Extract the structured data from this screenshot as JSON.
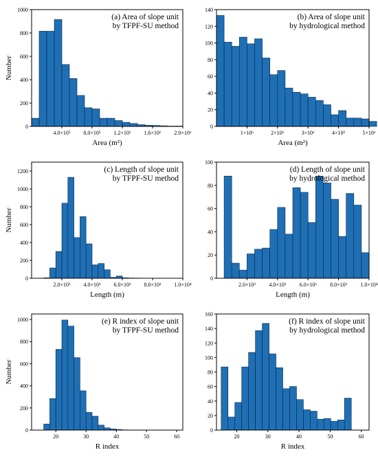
{
  "chart_data": [
    {
      "type": "bar",
      "title": [
        "(a) Area of slope unit",
        "by TFPF-SU method"
      ],
      "xlabel": "Area (m²)",
      "ylabel": "Number",
      "xlim": [
        0,
        2000000
      ],
      "ylim": [
        0,
        1000
      ],
      "bin_start": 0,
      "bin_width": 100000,
      "values": [
        70,
        815,
        815,
        915,
        530,
        410,
        265,
        160,
        150,
        70,
        70,
        50,
        35,
        25,
        15,
        10,
        8,
        5,
        3,
        3
      ],
      "xticks": [
        400000,
        800000,
        1200000,
        1600000,
        2000000
      ],
      "xtick_labels": [
        "4.0×10⁵",
        "8.0×10⁵",
        "1.2×10⁶",
        "1.6×10⁶",
        "2.0×10⁶"
      ],
      "yticks": [
        0,
        200,
        400,
        600,
        800,
        1000
      ],
      "ytick_labels": [
        "0",
        "200",
        "400",
        "600",
        "800",
        "1000"
      ]
    },
    {
      "type": "bar",
      "title": [
        "(b) Area of slope unit",
        "by hydrological method"
      ],
      "xlabel": "Area (m²)",
      "ylabel": "",
      "xlim": [
        0,
        5000000
      ],
      "ylim": [
        0,
        140
      ],
      "bin_start": 0,
      "bin_width": 250000,
      "values": [
        133,
        101,
        96,
        107,
        99,
        105,
        82,
        62,
        67,
        46,
        41,
        39,
        35,
        31,
        26,
        14,
        19,
        10,
        10,
        9,
        6
      ],
      "xticks": [
        1000000,
        2000000,
        3000000,
        4000000,
        5000000
      ],
      "xtick_labels": [
        "1×10⁶",
        "2×10⁶",
        "3×10⁶",
        "4×10⁶",
        "5×10⁶"
      ],
      "yticks": [
        0,
        20,
        40,
        60,
        80,
        100,
        120,
        140
      ],
      "ytick_labels": [
        "0",
        "20",
        "40",
        "60",
        "80",
        "100",
        "120",
        "140"
      ]
    },
    {
      "type": "bar",
      "title": [
        "(c) Length of slope unit",
        "by TFPF-SU method"
      ],
      "xlabel": "Length (m)",
      "ylabel": "Number",
      "xlim": [
        0,
        10000
      ],
      "ylim": [
        0,
        1300
      ],
      "bin_start": 800,
      "bin_width": 400,
      "values": [
        5,
        115,
        300,
        840,
        1130,
        455,
        690,
        385,
        150,
        165,
        95,
        10,
        25,
        5,
        3,
        2
      ],
      "xticks": [
        2000,
        4000,
        6000,
        8000,
        10000
      ],
      "xtick_labels": [
        "2.0×10³",
        "4.0×10³",
        "6.0×10³",
        "8.0×10³",
        "1.0×10⁴"
      ],
      "yticks": [
        0,
        200,
        400,
        600,
        800,
        1000,
        1200
      ],
      "ytick_labels": [
        "0",
        "200",
        "400",
        "600",
        "800",
        "1000",
        "1200"
      ]
    },
    {
      "type": "bar",
      "title": [
        "(d) Length of slope unit",
        "by hydrological method"
      ],
      "xlabel": "Length (m)",
      "ylabel": "",
      "xlim": [
        0,
        10000
      ],
      "ylim": [
        0,
        100
      ],
      "bin_start": 500,
      "bin_width": 500,
      "values": [
        88,
        13,
        7,
        21,
        25,
        26,
        42,
        61,
        38,
        78,
        74,
        48,
        88,
        82,
        68,
        36,
        73,
        63,
        22
      ],
      "xticks": [
        2000,
        4000,
        6000,
        8000,
        10000
      ],
      "xtick_labels": [
        "2.0×10³",
        "4.0×10³",
        "6.0×10³",
        "8.0×10³",
        "1.0×10⁴"
      ],
      "yticks": [
        0,
        20,
        40,
        60,
        80,
        100
      ],
      "ytick_labels": [
        "0",
        "20",
        "40",
        "60",
        "80",
        "100"
      ]
    },
    {
      "type": "bar",
      "title": [
        "(e) R index of slope unit",
        "by TFPF-SU method"
      ],
      "xlabel": "R index",
      "ylabel": "Number",
      "xlim": [
        12,
        62
      ],
      "ylim": [
        0,
        1050
      ],
      "bin_start": 16,
      "bin_width": 2,
      "values": [
        55,
        285,
        730,
        995,
        940,
        655,
        355,
        160,
        125,
        45,
        20,
        10,
        5,
        2,
        1
      ],
      "xticks": [
        20,
        30,
        40,
        50,
        60
      ],
      "xtick_labels": [
        "20",
        "30",
        "40",
        "50",
        "60"
      ],
      "yticks": [
        0,
        200,
        400,
        600,
        800,
        1000
      ],
      "ytick_labels": [
        "0",
        "200",
        "400",
        "600",
        "800",
        "1000"
      ]
    },
    {
      "type": "bar",
      "title": [
        "(f) R index of slope unit",
        "by hydrological method"
      ],
      "xlabel": "R index",
      "ylabel": "",
      "xlim": [
        13.5,
        62.5
      ],
      "ylim": [
        0,
        160
      ],
      "bin_start": 15,
      "bin_width": 2.2,
      "values": [
        87,
        18,
        38,
        87,
        107,
        137,
        147,
        105,
        86,
        57,
        60,
        42,
        28,
        26,
        15,
        16,
        12,
        14,
        44
      ],
      "xticks": [
        20,
        30,
        40,
        50,
        60
      ],
      "xtick_labels": [
        "20",
        "30",
        "40",
        "50",
        "60"
      ],
      "yticks": [
        0,
        20,
        40,
        60,
        80,
        100,
        120,
        140,
        160
      ],
      "ytick_labels": [
        "0",
        "20",
        "40",
        "60",
        "80",
        "100",
        "120",
        "140",
        "160"
      ]
    }
  ]
}
